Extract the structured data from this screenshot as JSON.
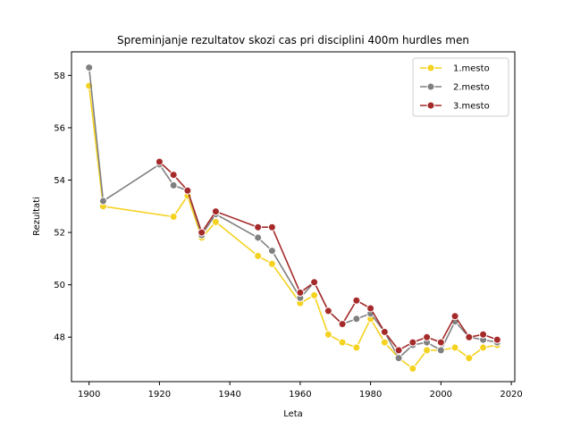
{
  "chart_data": {
    "type": "line",
    "title": "Spreminjanje rezultatov skozi cas pri disciplini 400m hurdles men",
    "xlabel": "Leta",
    "ylabel": "Rezultati",
    "xlim": [
      1895,
      2021
    ],
    "ylim": [
      46.3,
      58.9
    ],
    "xticks": [
      "1900",
      "1920",
      "1940",
      "1960",
      "1980",
      "2000",
      "2020"
    ],
    "yticks": [
      "48",
      "50",
      "52",
      "54",
      "56",
      "58"
    ],
    "grid": false,
    "legend_position": "top-right",
    "series": [
      {
        "name": "1.mesto",
        "color": "#f5d21f",
        "x": [
          1900,
          1904,
          1924,
          1928,
          1932,
          1936,
          1948,
          1952,
          1960,
          1964,
          1968,
          1972,
          1976,
          1980,
          1984,
          1988,
          1992,
          1996,
          2000,
          2004,
          2008,
          2012,
          2016
        ],
        "y": [
          57.6,
          53.0,
          52.6,
          53.4,
          51.8,
          52.4,
          51.1,
          50.8,
          49.3,
          49.6,
          48.1,
          47.8,
          47.6,
          48.7,
          47.8,
          47.2,
          46.8,
          47.5,
          47.5,
          47.6,
          47.2,
          47.6,
          47.7
        ]
      },
      {
        "name": "2.mesto",
        "color": "#808080",
        "x": [
          1900,
          1904,
          1920,
          1924,
          1928,
          1932,
          1936,
          1948,
          1952,
          1960,
          1964,
          1968,
          1972,
          1976,
          1980,
          1984,
          1988,
          1992,
          1996,
          2000,
          2004,
          2008,
          2012,
          2016
        ],
        "y": [
          58.3,
          53.2,
          54.6,
          53.8,
          53.6,
          51.9,
          52.7,
          51.8,
          51.3,
          49.5,
          50.1,
          49.0,
          48.5,
          48.7,
          48.9,
          48.2,
          47.2,
          47.7,
          47.8,
          47.5,
          48.6,
          48.0,
          47.9,
          47.8
        ]
      },
      {
        "name": "3.mesto",
        "color": "#a52a2a",
        "x": [
          1920,
          1924,
          1928,
          1932,
          1936,
          1948,
          1952,
          1960,
          1964,
          1968,
          1972,
          1976,
          1980,
          1984,
          1988,
          1992,
          1996,
          2000,
          2004,
          2008,
          2012,
          2016
        ],
        "y": [
          54.7,
          54.2,
          53.6,
          52.0,
          52.8,
          52.2,
          52.2,
          49.7,
          50.1,
          49.0,
          48.5,
          49.4,
          49.1,
          48.2,
          47.5,
          47.8,
          48.0,
          47.8,
          48.8,
          48.0,
          48.1,
          47.9
        ]
      }
    ]
  }
}
